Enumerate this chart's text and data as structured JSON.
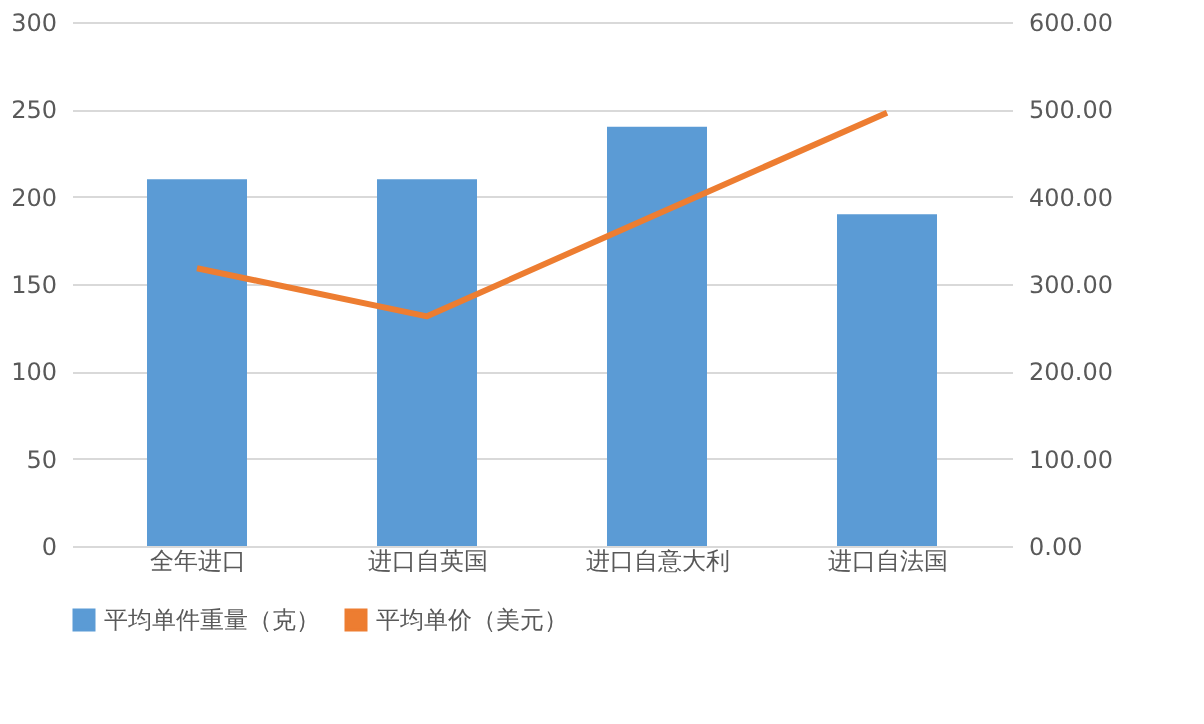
{
  "chart_data": {
    "type": "bar",
    "categories": [
      "全年进口",
      "进口自英国",
      "进口自意大利",
      "进口自法国"
    ],
    "series": [
      {
        "name": "平均单件重量（克）",
        "color": "#5b9bd5",
        "values": [
          210,
          210,
          240,
          190
        ]
      },
      {
        "name": "平均单价（美元）",
        "color": "#ed7d31",
        "type": "line",
        "axis": "y2",
        "values": [
          318,
          263,
          380,
          496
        ]
      }
    ],
    "ylim": [
      0,
      300
    ],
    "yticks": [
      0,
      50,
      100,
      150,
      200,
      250,
      300
    ],
    "y2lim": [
      0,
      600
    ],
    "y2ticks": [
      {
        "value": 0,
        "label": "0.00"
      },
      {
        "value": 100,
        "label": "100.00"
      },
      {
        "value": 200,
        "label": "200.00"
      },
      {
        "value": 300,
        "label": "300.00"
      },
      {
        "value": 400,
        "label": "400.00"
      },
      {
        "value": 500,
        "label": "500.00"
      },
      {
        "value": 600,
        "label": "600.00"
      }
    ],
    "grid": "y",
    "legend": "bottom",
    "marker": "none",
    "line_style": "solid"
  }
}
